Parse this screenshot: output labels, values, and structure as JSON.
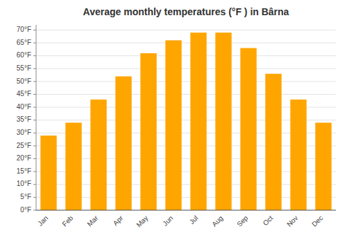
{
  "chart_data": {
    "type": "bar",
    "title": "Average monthly temperatures (°F ) in Bârna",
    "categories": [
      "Jan",
      "Feb",
      "Mar",
      "Apr",
      "May",
      "Jun",
      "Jul",
      "Aug",
      "Sep",
      "Oct",
      "Nov",
      "Dec"
    ],
    "values": [
      29,
      34,
      43,
      52,
      61,
      66,
      69,
      69,
      63,
      53,
      43,
      34
    ],
    "color": "#FFA500",
    "ylim": [
      0,
      72
    ],
    "yticks": [
      {
        "value": 0,
        "label": "0°F"
      },
      {
        "value": 5,
        "label": "5°F"
      },
      {
        "value": 10,
        "label": "10°F"
      },
      {
        "value": 15,
        "label": "15°F"
      },
      {
        "value": 20,
        "label": "20°F"
      },
      {
        "value": 25,
        "label": "25°F"
      },
      {
        "value": 30,
        "label": "30°F"
      },
      {
        "value": 35,
        "label": "35°F"
      },
      {
        "value": 40,
        "label": "40°F"
      },
      {
        "value": 45,
        "label": "45°F"
      },
      {
        "value": 50,
        "label": "50°F"
      },
      {
        "value": 55,
        "label": "55°F"
      },
      {
        "value": 60,
        "label": "60°F"
      },
      {
        "value": 65,
        "label": "65°F"
      },
      {
        "value": 70,
        "label": "70°F"
      }
    ],
    "grid": true
  }
}
